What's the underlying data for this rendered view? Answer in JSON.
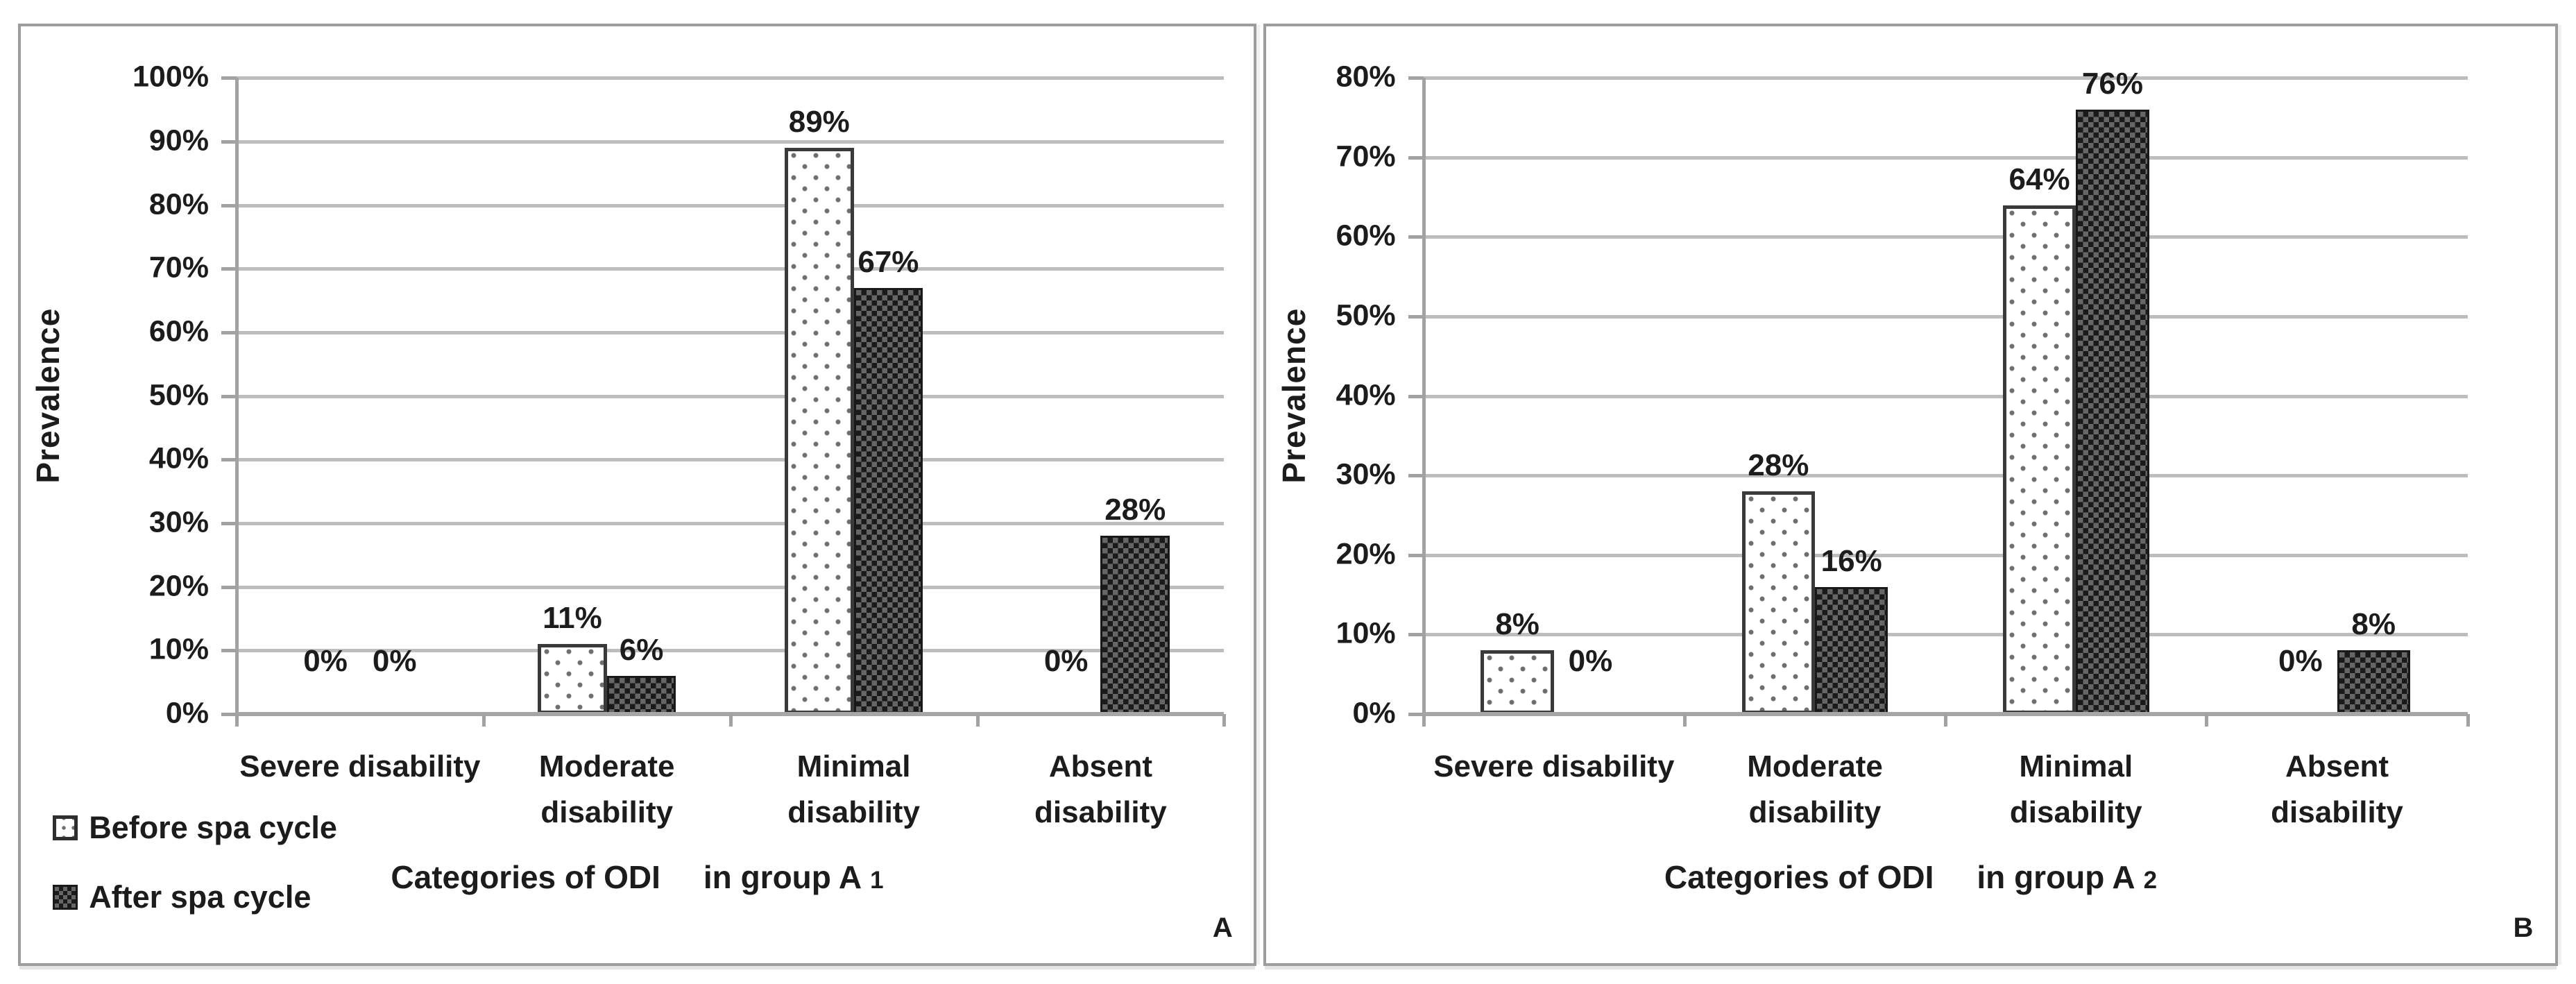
{
  "colors": {
    "text": "#1c1c1c",
    "gridline": "#bdbdbd",
    "axis": "#a2a2a2",
    "panel_border": "#9d9d9d",
    "bar_before_fill": "#ffffff",
    "bar_before_dot": "#6e6e6e",
    "bar_after_dark": "#1a1a1a",
    "bar_after_light": "#666666",
    "background": "#ffffff"
  },
  "legend": {
    "items": [
      {
        "label": "Before spa cycle",
        "swatch": "dotted-white-square"
      },
      {
        "label": "After spa cycle",
        "swatch": "dark-checker-square"
      }
    ]
  },
  "chart_data": [
    {
      "type": "bar",
      "panel_letter": "A",
      "ylabel": "Prevalence",
      "xlabel_part1": "Categories of ODI",
      "xlabel_part2": "in group A",
      "xlabel_group_number": "1",
      "categories": [
        "Severe disability",
        "Moderate disability",
        "Minimal disability",
        "Absent disability"
      ],
      "category_display_lines": [
        [
          "Severe disability"
        ],
        [
          "Moderate",
          "disability"
        ],
        [
          "Minimal",
          "disability"
        ],
        [
          "Absent",
          "disability"
        ]
      ],
      "series": [
        {
          "name": "Before spa cycle",
          "pattern": "dotted-white",
          "values": [
            0,
            11,
            89,
            0
          ],
          "labels": [
            "0%",
            "11%",
            "89%",
            "0%"
          ]
        },
        {
          "name": "After spa cycle",
          "pattern": "dark-checker",
          "values": [
            0,
            6,
            67,
            28
          ],
          "labels": [
            "0%",
            "6%",
            "67%",
            "28%"
          ]
        }
      ],
      "ylim": [
        0,
        100
      ],
      "ytick_step": 10,
      "ytick_labels": [
        "0%",
        "10%",
        "20%",
        "30%",
        "40%",
        "50%",
        "60%",
        "70%",
        "80%",
        "90%",
        "100%"
      ],
      "grid": true,
      "legend_position": "bottom-left"
    },
    {
      "type": "bar",
      "panel_letter": "B",
      "ylabel": "Prevalence",
      "xlabel_part1": "Categories of ODI",
      "xlabel_part2": "in group A",
      "xlabel_group_number": "2",
      "categories": [
        "Severe disability",
        "Moderate disability",
        "Minimal disability",
        "Absent disability"
      ],
      "category_display_lines": [
        [
          "Severe disability"
        ],
        [
          "Moderate",
          "disability"
        ],
        [
          "Minimal",
          "disability"
        ],
        [
          "Absent",
          "disability"
        ]
      ],
      "series": [
        {
          "name": "Before spa cycle",
          "pattern": "dotted-white",
          "values": [
            8,
            28,
            64,
            0
          ],
          "labels": [
            "8%",
            "28%",
            "64%",
            "0%"
          ]
        },
        {
          "name": "After spa cycle",
          "pattern": "dark-checker",
          "values": [
            0,
            16,
            76,
            8
          ],
          "labels": [
            "0%",
            "16%",
            "76%",
            "8%"
          ]
        }
      ],
      "ylim": [
        0,
        80
      ],
      "ytick_step": 10,
      "ytick_labels": [
        "0%",
        "10%",
        "20%",
        "30%",
        "40%",
        "50%",
        "60%",
        "70%",
        "80%"
      ],
      "grid": true,
      "legend_position": null
    }
  ]
}
